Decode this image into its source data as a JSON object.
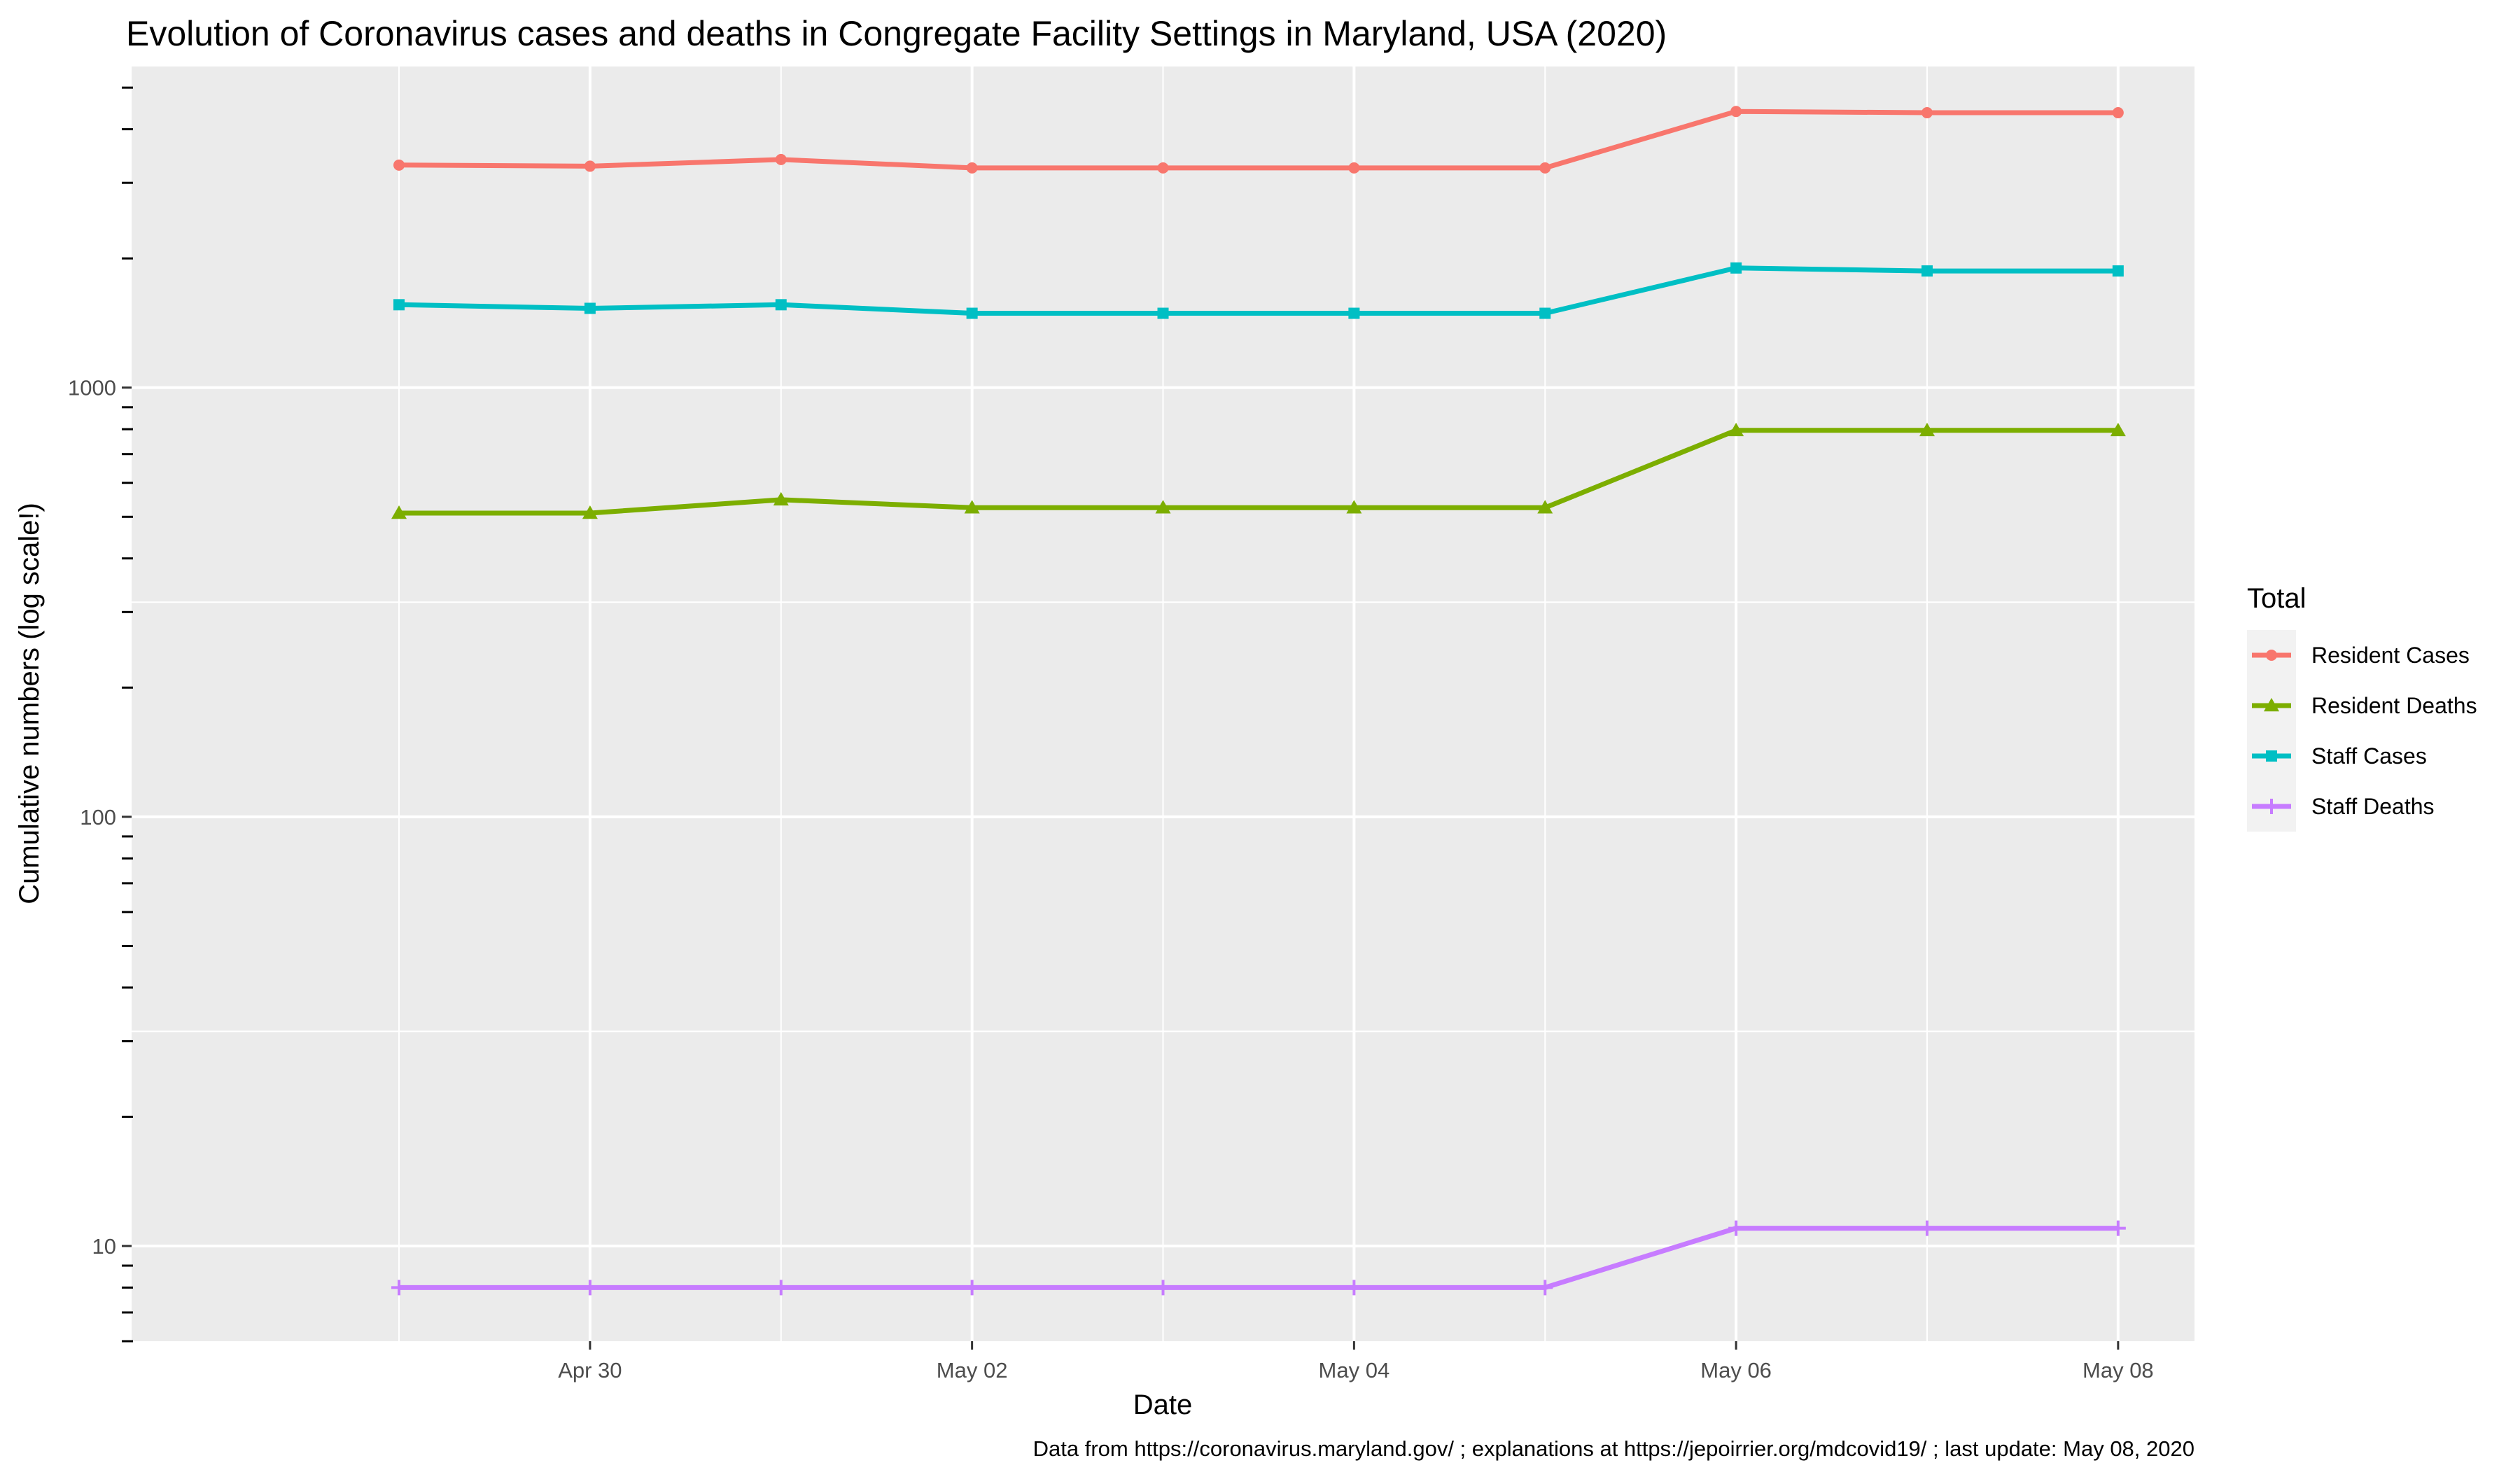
{
  "chart_data": {
    "type": "line",
    "title": "Evolution of Coronavirus cases and deaths in Congregate Facility Settings in Maryland, USA (2020)",
    "xlabel": "Date",
    "ylabel": "Cumulative numbers  (log scale!)",
    "caption": "Data from https://coronavirus.maryland.gov/ ; explanations at https://jepoirrier.org/mdcovid19/ ; last update: May 08, 2020",
    "y_scale": "log",
    "ylim": [
      6,
      5600
    ],
    "xlim": [
      "2020-04-28",
      "2020-05-08"
    ],
    "x": [
      "2020-04-29",
      "2020-04-30",
      "2020-05-01",
      "2020-05-02",
      "2020-05-03",
      "2020-05-04",
      "2020-05-05",
      "2020-05-06",
      "2020-05-07",
      "2020-05-08"
    ],
    "x_ticks": [
      {
        "date": "2020-04-30",
        "label": "Apr 30"
      },
      {
        "date": "2020-05-02",
        "label": "May 02"
      },
      {
        "date": "2020-05-04",
        "label": "May 04"
      },
      {
        "date": "2020-05-06",
        "label": "May 06"
      },
      {
        "date": "2020-05-08",
        "label": "May 08"
      }
    ],
    "y_ticks": [
      {
        "value": 10,
        "label": "10"
      },
      {
        "value": 100,
        "label": "100"
      },
      {
        "value": 1000,
        "label": "1000"
      }
    ],
    "grid": true,
    "legend_title": "Total",
    "legend_position": "right",
    "series": [
      {
        "name": "Resident Cases",
        "color": "#F8766D",
        "marker": "circle",
        "values": [
          3300,
          3280,
          3400,
          3250,
          3250,
          3250,
          3250,
          4400,
          4370,
          4370
        ]
      },
      {
        "name": "Resident Deaths",
        "color": "#7CAE00",
        "marker": "triangle",
        "values": [
          510,
          510,
          548,
          525,
          525,
          525,
          525,
          795,
          795,
          795
        ]
      },
      {
        "name": "Staff Cases",
        "color": "#00BFC4",
        "marker": "square",
        "values": [
          1560,
          1530,
          1560,
          1490,
          1490,
          1490,
          1490,
          1900,
          1870,
          1870
        ]
      },
      {
        "name": "Staff Deaths",
        "color": "#C77CFF",
        "marker": "plus",
        "values": [
          8,
          8,
          8,
          8,
          8,
          8,
          8,
          11,
          11,
          11
        ]
      }
    ]
  }
}
